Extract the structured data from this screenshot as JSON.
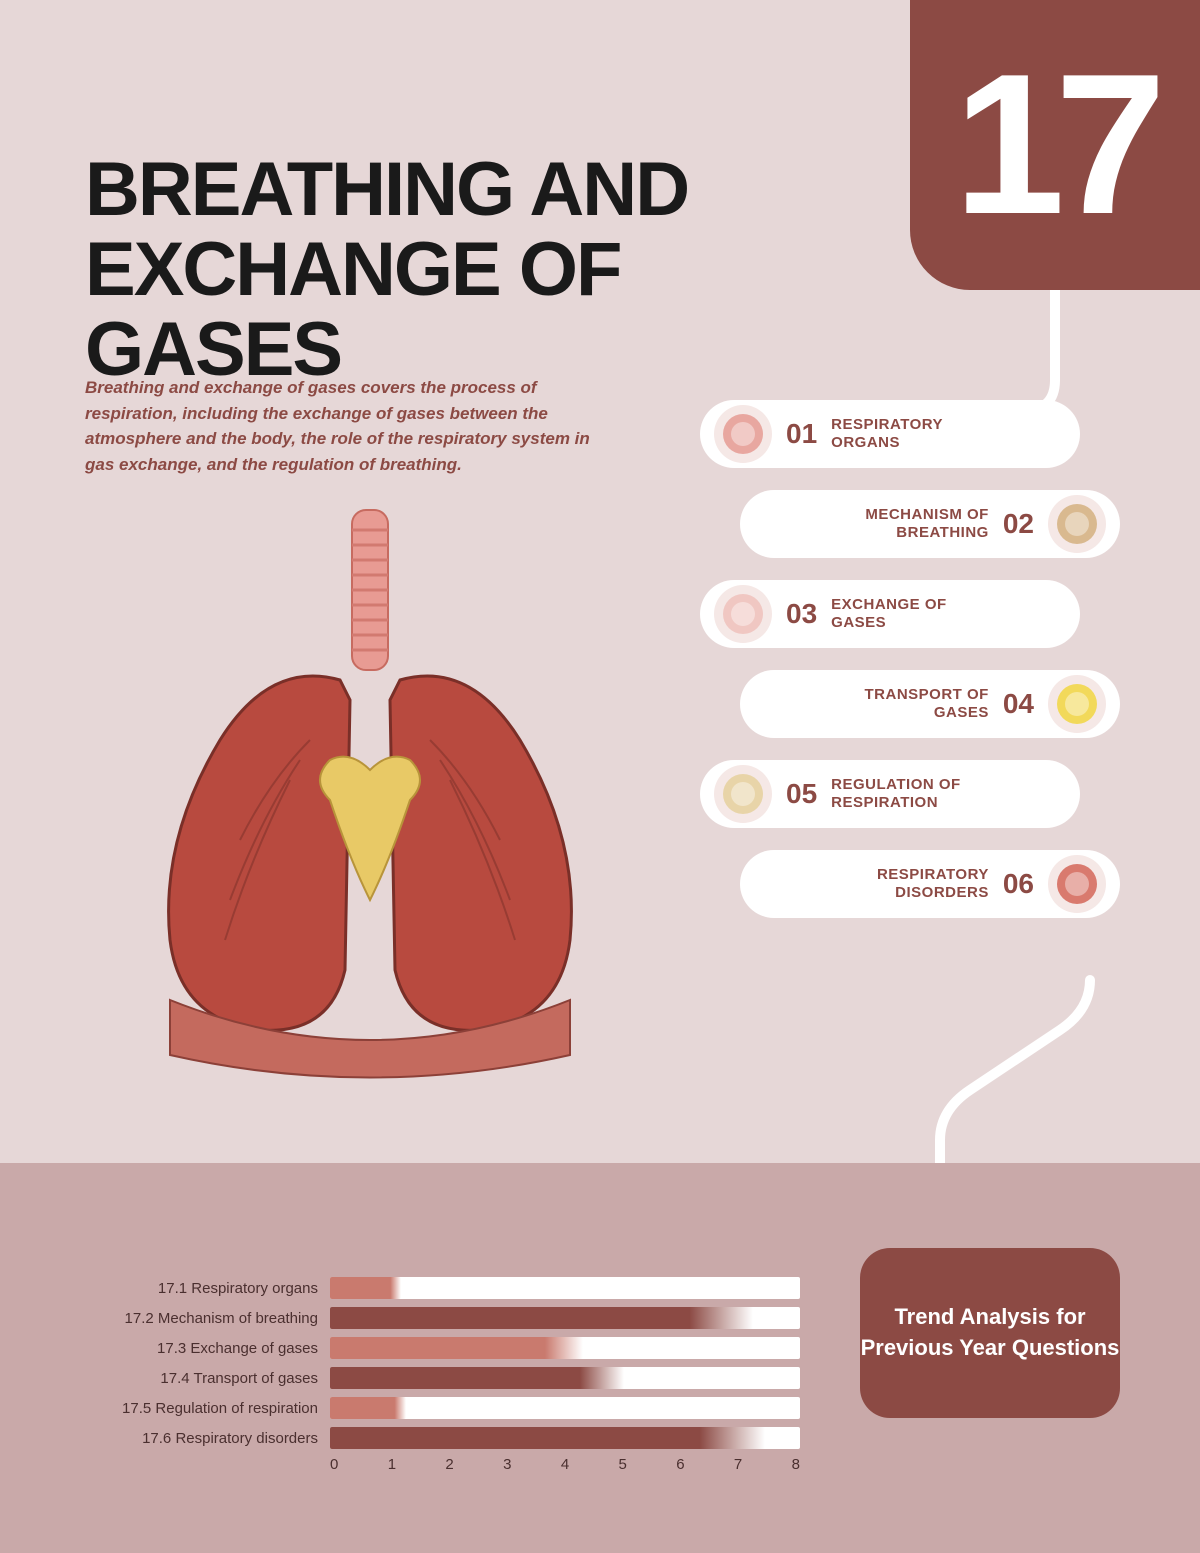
{
  "chapter_number": "17",
  "title": "BREATHING AND EXCHANGE OF GASES",
  "intro": "Breathing and exchange of gases covers the process of respiration, including the exchange of gases between the atmosphere and the body, the role of the respiratory system in gas exchange, and the regulation of breathing.",
  "colors": {
    "page_bg": "#e6d7d7",
    "accent": "#8c4a44",
    "bottom_band": "#c9a9a9",
    "white": "#ffffff",
    "title_color": "#1a1a1a",
    "chart_text": "#4a2f2f"
  },
  "topics": [
    {
      "num": "01",
      "label": "RESPIRATORY ORGANS",
      "side": "left",
      "icon_color": "#e8a7a0"
    },
    {
      "num": "02",
      "label": "MECHANISM OF BREATHING",
      "side": "right",
      "icon_color": "#d9b98f"
    },
    {
      "num": "03",
      "label": "EXCHANGE OF GASES",
      "side": "left",
      "icon_color": "#f0c7c2"
    },
    {
      "num": "04",
      "label": "TRANSPORT OF GASES",
      "side": "right",
      "icon_color": "#f2d95a"
    },
    {
      "num": "05",
      "label": "REGULATION OF RESPIRATION",
      "side": "left",
      "icon_color": "#e8d4a8"
    },
    {
      "num": "06",
      "label": "RESPIRATORY DISORDERS",
      "side": "right",
      "icon_color": "#d97a6e"
    }
  ],
  "trend_box": "Trend Analysis for Previous Year Questions",
  "chart": {
    "type": "bar-horizontal",
    "x_max": 8,
    "x_ticks": [
      "0",
      "1",
      "2",
      "3",
      "4",
      "5",
      "6",
      "7",
      "8"
    ],
    "rows": [
      {
        "label": "17.1 Respiratory organs",
        "value": 1.2,
        "fill": "#c97a6e"
      },
      {
        "label": "17.2 Mechanism of breathing",
        "value": 7.2,
        "fill": "#8c4a44"
      },
      {
        "label": "17.3 Exchange of gases",
        "value": 4.3,
        "fill": "#c97a6e"
      },
      {
        "label": "17.4 Transport of gases",
        "value": 5.0,
        "fill": "#8c4a44"
      },
      {
        "label": "17.5 Regulation of respiration",
        "value": 1.3,
        "fill": "#c97a6e"
      },
      {
        "label": "17.6 Respiratory disorders",
        "value": 7.4,
        "fill": "#8c4a44"
      }
    ],
    "track_bg": "#ffffff",
    "label_fontsize": 15
  }
}
